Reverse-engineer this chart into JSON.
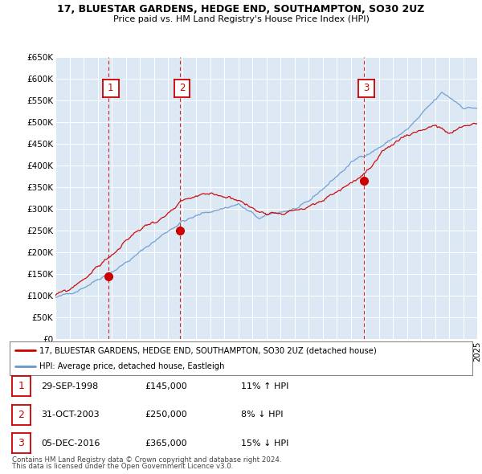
{
  "title1": "17, BLUESTAR GARDENS, HEDGE END, SOUTHAMPTON, SO30 2UZ",
  "title2": "Price paid vs. HM Land Registry's House Price Index (HPI)",
  "ylabel_ticks": [
    "£0",
    "£50K",
    "£100K",
    "£150K",
    "£200K",
    "£250K",
    "£300K",
    "£350K",
    "£400K",
    "£450K",
    "£500K",
    "£550K",
    "£600K",
    "£650K"
  ],
  "ytick_values": [
    0,
    50000,
    100000,
    150000,
    200000,
    250000,
    300000,
    350000,
    400000,
    450000,
    500000,
    550000,
    600000,
    650000
  ],
  "sales": [
    {
      "date_year": 1998.75,
      "price": 145000,
      "label": "1"
    },
    {
      "date_year": 2003.83,
      "price": 250000,
      "label": "2"
    },
    {
      "date_year": 2016.92,
      "price": 365000,
      "label": "3"
    }
  ],
  "sale_annotations": [
    {
      "label": "1",
      "date": "29-SEP-1998",
      "price": "£145,000",
      "hpi_pct": "11% ↑ HPI"
    },
    {
      "label": "2",
      "date": "31-OCT-2003",
      "price": "£250,000",
      "hpi_pct": "8% ↓ HPI"
    },
    {
      "label": "3",
      "date": "05-DEC-2016",
      "price": "£365,000",
      "hpi_pct": "15% ↓ HPI"
    }
  ],
  "legend_line1": "17, BLUESTAR GARDENS, HEDGE END, SOUTHAMPTON, SO30 2UZ (detached house)",
  "legend_line2": "HPI: Average price, detached house, Eastleigh",
  "footer1": "Contains HM Land Registry data © Crown copyright and database right 2024.",
  "footer2": "This data is licensed under the Open Government Licence v3.0.",
  "line_color_red": "#cc0000",
  "line_color_blue": "#6699cc",
  "bg_chart": "#dde8f5",
  "background_color": "#ffffff",
  "xmin": 1995,
  "xmax": 2025,
  "ymin": 0,
  "ymax": 650000
}
